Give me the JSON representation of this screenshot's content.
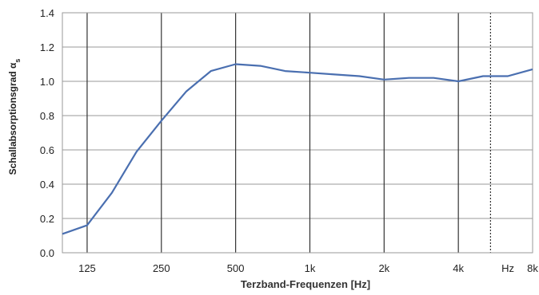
{
  "chart_data": {
    "type": "line",
    "title": "",
    "xlabel": "Terzband-Frequenzen [Hz]",
    "ylabel": "Schallabsorptionsgrad α",
    "ylabel_subscript": "s",
    "ylim": [
      0.0,
      1.4
    ],
    "y_ticks": [
      "0.0",
      "0.2",
      "0.4",
      "0.6",
      "0.8",
      "1.0",
      "1.2",
      "1.4"
    ],
    "x_ticks": [
      "125",
      "250",
      "500",
      "1k",
      "2k",
      "4k",
      "Hz",
      "8k"
    ],
    "x": [
      "100",
      "125",
      "160",
      "200",
      "250",
      "315",
      "400",
      "500",
      "630",
      "800",
      "1000",
      "1250",
      "1600",
      "2000",
      "2500",
      "3150",
      "4000",
      "5000",
      "6300",
      "8000"
    ],
    "series": [
      {
        "values": [
          0.11,
          0.16,
          0.35,
          0.59,
          0.77,
          0.94,
          1.06,
          1.1,
          1.09,
          1.06,
          1.05,
          1.04,
          1.03,
          1.01,
          1.02,
          1.02,
          1.0,
          1.03,
          1.03,
          1.07
        ],
        "color": "#4a6fb0"
      }
    ],
    "grid": true,
    "legend": "none"
  }
}
